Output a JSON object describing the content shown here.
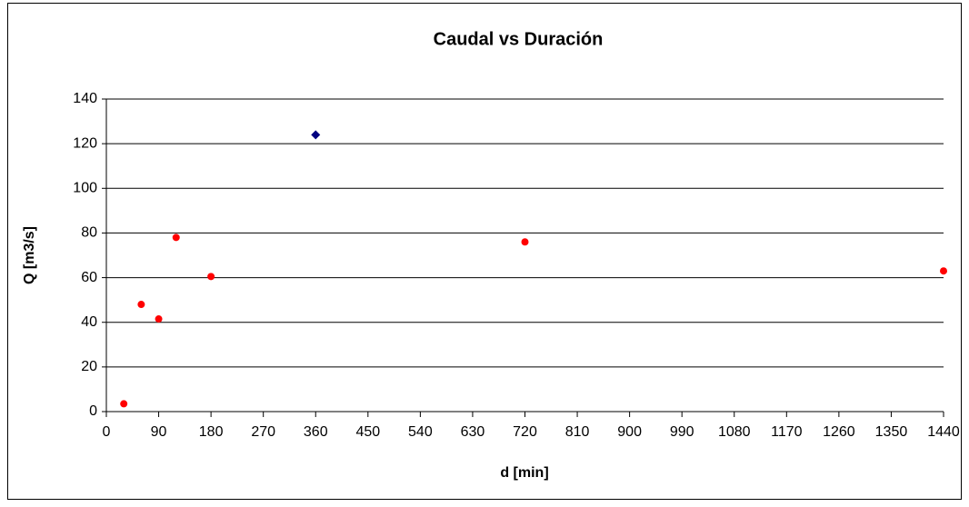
{
  "chart_data": {
    "type": "scatter",
    "title": "Caudal vs Duración",
    "xlabel": "d [min]",
    "ylabel": "Q [m3/s]",
    "series": [
      {
        "color": "#ff0000",
        "marker": "circle",
        "x": [
          30,
          60,
          90,
          120,
          180,
          720,
          1440
        ],
        "values": [
          3.5,
          48,
          41.5,
          78,
          60.5,
          76,
          63
        ]
      },
      {
        "color": "#000080",
        "marker": "diamond",
        "x": [
          360
        ],
        "values": [
          124
        ]
      }
    ],
    "xlim": [
      0,
      1440
    ],
    "xticks": [
      0,
      90,
      180,
      270,
      360,
      450,
      540,
      630,
      720,
      810,
      900,
      990,
      1080,
      1170,
      1260,
      1350,
      1440
    ],
    "ylim": [
      0,
      140
    ],
    "yticks": [
      0,
      20,
      40,
      60,
      80,
      100,
      120,
      140
    ],
    "grid": true
  }
}
